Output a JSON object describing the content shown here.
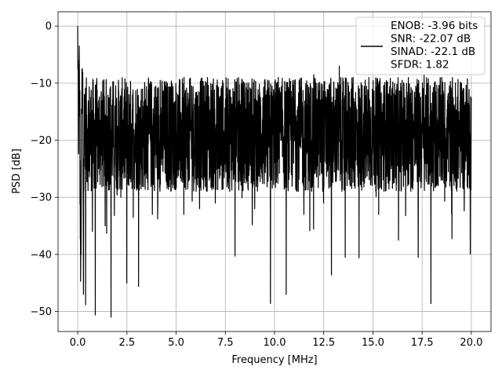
{
  "chart_data": {
    "type": "line",
    "xlabel": "Frequency [MHz]",
    "ylabel": "PSD [dB]",
    "xlim": [
      -1.0,
      21.0
    ],
    "ylim": [
      -53.5,
      2.5
    ],
    "xticks": [
      0.0,
      2.5,
      5.0,
      7.5,
      10.0,
      12.5,
      15.0,
      17.5,
      20.0
    ],
    "xtick_labels": [
      "0.0",
      "2.5",
      "5.0",
      "7.5",
      "10.0",
      "12.5",
      "15.0",
      "17.5",
      "20.0"
    ],
    "yticks": [
      0,
      -10,
      -20,
      -30,
      -40,
      -50
    ],
    "ytick_labels": [
      "0",
      "−10",
      "−20",
      "−30",
      "−40",
      "−50"
    ],
    "grid": true,
    "legend_position": "top-right",
    "series": [
      {
        "name": "ENOB: -3.96 bits\nSNR: -22.07 dB\nSINAD: -22.1 dB\nSFDR: 1.82",
        "color": "#000000",
        "description_note": "dense noise-like PSD; envelope upper ~ -8 dB, lower ~ -30 dB with deep dips",
        "points": [
          [
            0.0,
            0.0
          ],
          [
            0.02,
            -6.0
          ],
          [
            0.05,
            -22.0
          ],
          [
            0.08,
            -3.5
          ],
          [
            0.1,
            -14.0
          ],
          [
            0.15,
            -44.7
          ],
          [
            0.2,
            -15.0
          ],
          [
            0.25,
            -9.0
          ],
          [
            0.3,
            -47.0
          ],
          [
            0.35,
            -12.0
          ],
          [
            0.4,
            -48.8
          ],
          [
            0.5,
            -18.0
          ],
          [
            0.6,
            -13.5
          ],
          [
            0.75,
            -36.0
          ],
          [
            0.9,
            -50.6
          ],
          [
            1.0,
            -21.0
          ],
          [
            1.2,
            -11.5
          ],
          [
            1.4,
            -35.0
          ],
          [
            1.7,
            -51.0
          ],
          [
            1.9,
            -14.0
          ],
          [
            2.2,
            -30.0
          ],
          [
            2.5,
            -45.0
          ],
          [
            2.8,
            -12.0
          ],
          [
            3.1,
            -45.6
          ],
          [
            3.4,
            -14.0
          ],
          [
            3.8,
            -33.0
          ],
          [
            4.2,
            -9.5
          ],
          [
            4.6,
            -27.0
          ],
          [
            5.0,
            -11.0
          ],
          [
            5.4,
            -33.0
          ],
          [
            5.8,
            -10.5
          ],
          [
            6.2,
            -32.0
          ],
          [
            6.6,
            -9.0
          ],
          [
            7.0,
            -31.0
          ],
          [
            7.4,
            -10.0
          ],
          [
            8.0,
            -40.3
          ],
          [
            8.5,
            -10.0
          ],
          [
            9.0,
            -32.0
          ],
          [
            9.5,
            -9.5
          ],
          [
            9.8,
            -48.6
          ],
          [
            10.2,
            -9.0
          ],
          [
            10.6,
            -47.0
          ],
          [
            11.0,
            -9.5
          ],
          [
            11.5,
            -33.0
          ],
          [
            12.0,
            -8.5
          ],
          [
            12.5,
            -31.0
          ],
          [
            12.9,
            -43.6
          ],
          [
            13.3,
            -7.0
          ],
          [
            13.6,
            -40.5
          ],
          [
            14.0,
            -9.0
          ],
          [
            14.3,
            -40.6
          ],
          [
            14.8,
            -9.0
          ],
          [
            15.3,
            -33.0
          ],
          [
            15.7,
            -10.0
          ],
          [
            16.3,
            -37.5
          ],
          [
            16.8,
            -9.0
          ],
          [
            17.3,
            -40.5
          ],
          [
            17.6,
            -8.5
          ],
          [
            17.95,
            -48.6
          ],
          [
            18.5,
            -9.0
          ],
          [
            19.0,
            -33.0
          ],
          [
            19.5,
            -10.0
          ],
          [
            19.95,
            -39.9
          ],
          [
            20.0,
            -13.0
          ]
        ]
      }
    ]
  }
}
